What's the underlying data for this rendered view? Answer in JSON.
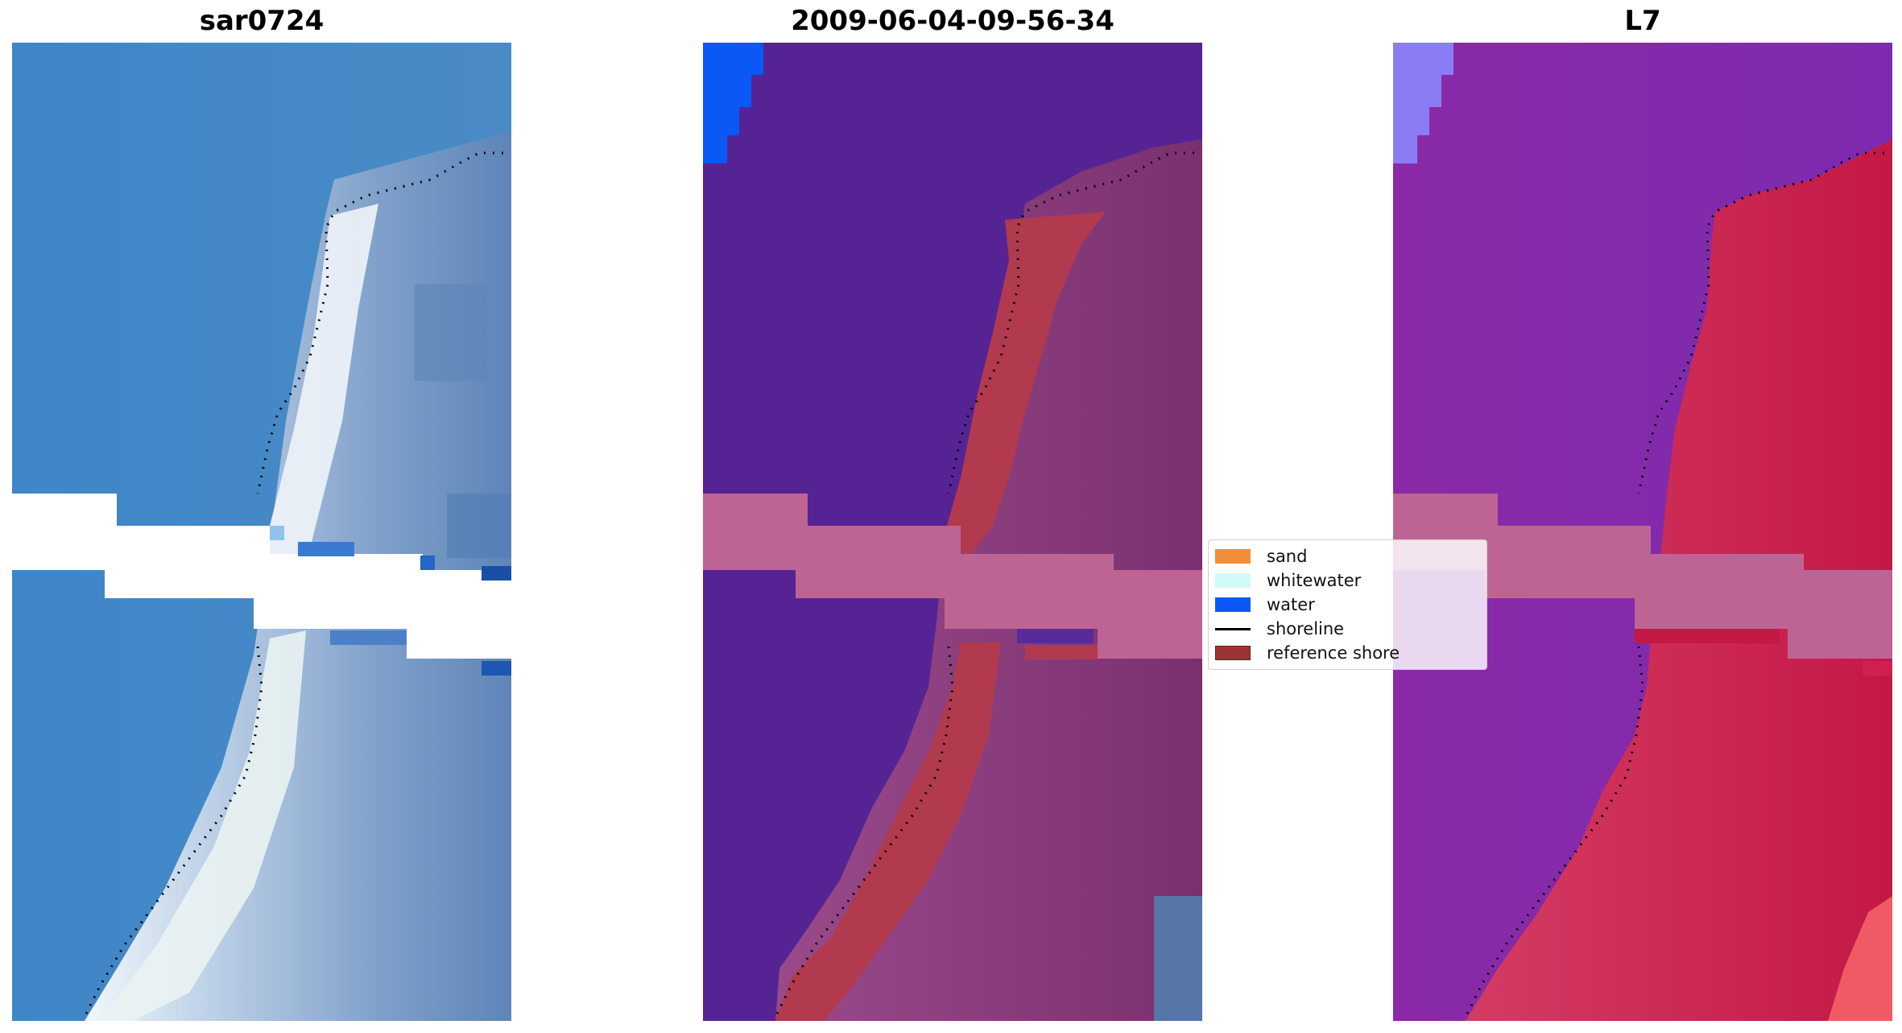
{
  "panels": [
    {
      "title": "sar0724"
    },
    {
      "title": "2009-06-04-09-56-34"
    },
    {
      "title": "L7"
    }
  ],
  "legend": {
    "items": [
      {
        "label": "sand",
        "color": "#f28e3a",
        "kind": "patch"
      },
      {
        "label": "whitewater",
        "color": "#d2fbf7",
        "kind": "patch"
      },
      {
        "label": "water",
        "color": "#0a58f5",
        "kind": "patch"
      },
      {
        "label": "shoreline",
        "color": "#000000",
        "kind": "line"
      },
      {
        "label": "reference shore",
        "color": "#9b3535",
        "kind": "patch"
      }
    ]
  },
  "colors": {
    "rgb_water": "#3c82c6",
    "rgb_sand": "#c8dcee",
    "class_background": "#562395",
    "class_sand_overlay": "#b23a4e",
    "class_land": "#8a3b7a",
    "nodata_band": "#be6494",
    "l7_water": "#8229a4",
    "l7_land": "#c61c4e",
    "water_patch": "#0a58f5"
  }
}
